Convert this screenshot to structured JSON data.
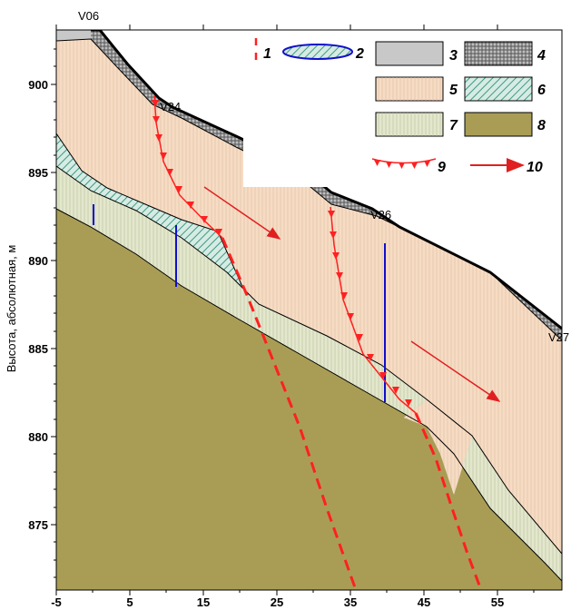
{
  "y_axis": {
    "title": "Высота, абсолютная, м",
    "ticks": [
      "900",
      "895",
      "890",
      "885",
      "880",
      "875"
    ]
  },
  "x_axis": {
    "ticks": [
      "-5",
      "5",
      "15",
      "25",
      "35",
      "45",
      "55"
    ]
  },
  "wells": [
    "V06",
    "V24",
    "V26",
    "V27"
  ],
  "legend": {
    "items": [
      {
        "num": "1",
        "symbol": "fault-dashed-line"
      },
      {
        "num": "2",
        "symbol": "lens-ellipse"
      },
      {
        "num": "3",
        "symbol": "fill-gray"
      },
      {
        "num": "4",
        "symbol": "fill-stippled-dark"
      },
      {
        "num": "5",
        "symbol": "fill-peach-lined"
      },
      {
        "num": "6",
        "symbol": "fill-green-hatched"
      },
      {
        "num": "7",
        "symbol": "fill-pale-green-lined"
      },
      {
        "num": "8",
        "symbol": "fill-olive"
      },
      {
        "num": "9",
        "symbol": "sliding-surface-triangles"
      },
      {
        "num": "10",
        "symbol": "movement-arrow"
      }
    ]
  },
  "colors": {
    "layer3": "#c8c8c8",
    "layer4": "#7a7a7a",
    "layer5": "#f7dcc4",
    "layer6": "#a9ccc4",
    "layer7": "#e3e7cc",
    "layer8": "#a99d55",
    "fault": "#ff2020",
    "borehole": "#1010cc",
    "arrow": "#e02020"
  }
}
